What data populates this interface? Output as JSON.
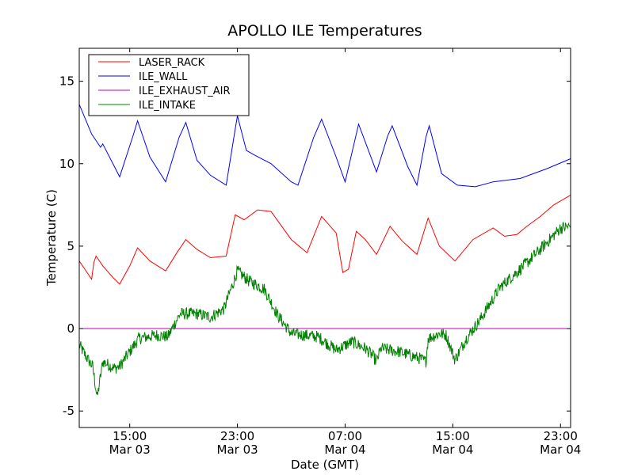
{
  "chart_data": {
    "type": "line",
    "title": "APOLLO ILE Temperatures",
    "xlabel": "Date (GMT)",
    "ylabel": "Temperature (C)",
    "xlim": [
      "2008-03-03 11:15",
      "2008-03-04 23:45"
    ],
    "ylim": [
      -6,
      17
    ],
    "y_ticks": [
      15,
      10,
      5,
      0,
      -5
    ],
    "y_tick_labels": [
      "15",
      "10",
      "5",
      "0",
      "-5"
    ],
    "x_ticks": [
      {
        "time": "2008-03-03 15:00",
        "label": [
          "15:00",
          "Mar 03"
        ]
      },
      {
        "time": "2008-03-03 23:00",
        "label": [
          "23:00",
          "Mar 03"
        ]
      },
      {
        "time": "2008-03-04 07:00",
        "label": [
          "07:00",
          "Mar 04"
        ]
      },
      {
        "time": "2008-03-04 15:00",
        "label": [
          "15:00",
          "Mar 04"
        ]
      },
      {
        "time": "2008-03-04 23:00",
        "label": [
          "23:00",
          "Mar 04"
        ]
      }
    ],
    "grid": false,
    "legend_position": "top-left",
    "series": [
      {
        "name": "LASER_RACK",
        "color": "#ff0000",
        "points": [
          [
            "2008-03-03 11:15",
            4.1
          ],
          [
            "2008-03-03 11:40",
            3.6
          ],
          [
            "2008-03-03 12:10",
            3.0
          ],
          [
            "2008-03-03 12:20",
            4.0
          ],
          [
            "2008-03-03 12:30",
            4.4
          ],
          [
            "2008-03-03 13:00",
            3.8
          ],
          [
            "2008-03-03 13:45",
            3.1
          ],
          [
            "2008-03-03 14:15",
            2.7
          ],
          [
            "2008-03-03 15:00",
            3.8
          ],
          [
            "2008-03-03 15:35",
            4.9
          ],
          [
            "2008-03-03 16:30",
            4.1
          ],
          [
            "2008-03-03 17:40",
            3.5
          ],
          [
            "2008-03-03 18:30",
            4.6
          ],
          [
            "2008-03-03 19:10",
            5.4
          ],
          [
            "2008-03-03 20:00",
            4.8
          ],
          [
            "2008-03-03 21:00",
            4.3
          ],
          [
            "2008-03-03 22:10",
            4.4
          ],
          [
            "2008-03-03 22:50",
            6.9
          ],
          [
            "2008-03-03 23:30",
            6.6
          ],
          [
            "2008-03-04 00:30",
            7.2
          ],
          [
            "2008-03-04 01:30",
            7.1
          ],
          [
            "2008-03-04 03:00",
            5.4
          ],
          [
            "2008-03-04 04:10",
            4.6
          ],
          [
            "2008-03-04 05:15",
            6.8
          ],
          [
            "2008-03-04 06:20",
            5.8
          ],
          [
            "2008-03-04 06:50",
            3.4
          ],
          [
            "2008-03-04 07:15",
            3.6
          ],
          [
            "2008-03-04 07:50",
            5.9
          ],
          [
            "2008-03-04 08:30",
            5.4
          ],
          [
            "2008-03-04 09:20",
            4.5
          ],
          [
            "2008-03-04 10:20",
            6.2
          ],
          [
            "2008-03-04 11:15",
            5.3
          ],
          [
            "2008-03-04 12:20",
            4.5
          ],
          [
            "2008-03-04 13:10",
            6.7
          ],
          [
            "2008-03-04 14:00",
            5.0
          ],
          [
            "2008-03-04 15:10",
            4.1
          ],
          [
            "2008-03-04 16:30",
            5.4
          ],
          [
            "2008-03-04 18:00",
            6.1
          ],
          [
            "2008-03-04 18:50",
            5.6
          ],
          [
            "2008-03-04 19:45",
            5.7
          ],
          [
            "2008-03-04 20:30",
            6.2
          ],
          [
            "2008-03-04 21:30",
            6.8
          ],
          [
            "2008-03-04 22:30",
            7.5
          ],
          [
            "2008-03-04 23:45",
            8.1
          ]
        ]
      },
      {
        "name": "ILE_WALL",
        "color": "#0000ff",
        "points": [
          [
            "2008-03-03 11:15",
            13.6
          ],
          [
            "2008-03-03 12:10",
            11.8
          ],
          [
            "2008-03-03 12:50",
            11.0
          ],
          [
            "2008-03-03 13:00",
            11.2
          ],
          [
            "2008-03-03 14:15",
            9.2
          ],
          [
            "2008-03-03 15:15",
            11.7
          ],
          [
            "2008-03-03 15:35",
            12.6
          ],
          [
            "2008-03-03 16:30",
            10.4
          ],
          [
            "2008-03-03 17:40",
            8.9
          ],
          [
            "2008-03-03 18:40",
            11.6
          ],
          [
            "2008-03-03 19:10",
            12.5
          ],
          [
            "2008-03-03 20:00",
            10.2
          ],
          [
            "2008-03-03 21:00",
            9.3
          ],
          [
            "2008-03-03 22:10",
            8.7
          ],
          [
            "2008-03-03 22:50",
            12.1
          ],
          [
            "2008-03-03 23:00",
            12.9
          ],
          [
            "2008-03-03 23:40",
            10.8
          ],
          [
            "2008-03-04 00:20",
            10.5
          ],
          [
            "2008-03-04 01:30",
            10.0
          ],
          [
            "2008-03-04 03:00",
            8.9
          ],
          [
            "2008-03-04 03:30",
            8.7
          ],
          [
            "2008-03-04 04:40",
            11.6
          ],
          [
            "2008-03-04 05:15",
            12.7
          ],
          [
            "2008-03-04 06:20",
            10.4
          ],
          [
            "2008-03-04 07:00",
            8.9
          ],
          [
            "2008-03-04 08:00",
            12.4
          ],
          [
            "2008-03-04 09:20",
            9.5
          ],
          [
            "2008-03-04 10:10",
            11.7
          ],
          [
            "2008-03-04 10:30",
            12.3
          ],
          [
            "2008-03-04 11:40",
            9.8
          ],
          [
            "2008-03-04 12:20",
            8.7
          ],
          [
            "2008-03-04 13:00",
            11.6
          ],
          [
            "2008-03-04 13:15",
            12.3
          ],
          [
            "2008-03-04 14:10",
            9.4
          ],
          [
            "2008-03-04 15:20",
            8.7
          ],
          [
            "2008-03-04 16:40",
            8.6
          ],
          [
            "2008-03-04 18:00",
            8.9
          ],
          [
            "2008-03-04 20:00",
            9.1
          ],
          [
            "2008-03-04 22:00",
            9.7
          ],
          [
            "2008-03-04 23:45",
            10.3
          ]
        ]
      },
      {
        "name": "ILE_EXHAUST_AIR",
        "color": "#bf00bf",
        "points": [
          [
            "2008-03-03 11:15",
            0
          ],
          [
            "2008-03-04 23:45",
            0
          ]
        ]
      },
      {
        "name": "ILE_INTAKE",
        "color": "#008000",
        "noisy": true,
        "points": [
          [
            "2008-03-03 11:15",
            -1.0
          ],
          [
            "2008-03-03 11:50",
            -1.8
          ],
          [
            "2008-03-03 12:15",
            -2.3
          ],
          [
            "2008-03-03 12:35",
            -4.2
          ],
          [
            "2008-03-03 13:00",
            -2.0
          ],
          [
            "2008-03-03 13:50",
            -2.4
          ],
          [
            "2008-03-03 14:15",
            -2.3
          ],
          [
            "2008-03-03 15:00",
            -1.4
          ],
          [
            "2008-03-03 15:40",
            -0.6
          ],
          [
            "2008-03-03 17:00",
            -0.4
          ],
          [
            "2008-03-03 17:50",
            -0.5
          ],
          [
            "2008-03-03 18:20",
            0.3
          ],
          [
            "2008-03-03 18:45",
            0.9
          ],
          [
            "2008-03-03 20:00",
            0.9
          ],
          [
            "2008-03-03 21:00",
            0.7
          ],
          [
            "2008-03-03 22:00",
            1.2
          ],
          [
            "2008-03-03 23:00",
            3.5
          ],
          [
            "2008-03-03 23:50",
            2.9
          ],
          [
            "2008-03-04 01:00",
            2.4
          ],
          [
            "2008-03-04 02:00",
            0.8
          ],
          [
            "2008-03-04 03:00",
            -0.3
          ],
          [
            "2008-03-04 04:00",
            -0.4
          ],
          [
            "2008-03-04 05:00",
            -0.5
          ],
          [
            "2008-03-04 06:20",
            -1.3
          ],
          [
            "2008-03-04 07:30",
            -0.8
          ],
          [
            "2008-03-04 08:30",
            -1.2
          ],
          [
            "2008-03-04 09:00",
            -1.6
          ],
          [
            "2008-03-04 09:20",
            -2.0
          ],
          [
            "2008-03-04 09:40",
            -1.2
          ],
          [
            "2008-03-04 11:00",
            -1.4
          ],
          [
            "2008-03-04 12:30",
            -1.8
          ],
          [
            "2008-03-04 13:00",
            -2.0
          ],
          [
            "2008-03-04 13:10",
            -0.6
          ],
          [
            "2008-03-04 14:00",
            -0.3
          ],
          [
            "2008-03-04 14:30",
            -0.4
          ],
          [
            "2008-03-04 15:10",
            -1.9
          ],
          [
            "2008-03-04 16:00",
            -0.6
          ],
          [
            "2008-03-04 17:00",
            0.5
          ],
          [
            "2008-03-04 18:30",
            2.5
          ],
          [
            "2008-03-04 20:00",
            3.6
          ],
          [
            "2008-03-04 21:30",
            4.8
          ],
          [
            "2008-03-04 23:00",
            6.1
          ],
          [
            "2008-03-04 23:45",
            6.2
          ]
        ]
      }
    ]
  }
}
